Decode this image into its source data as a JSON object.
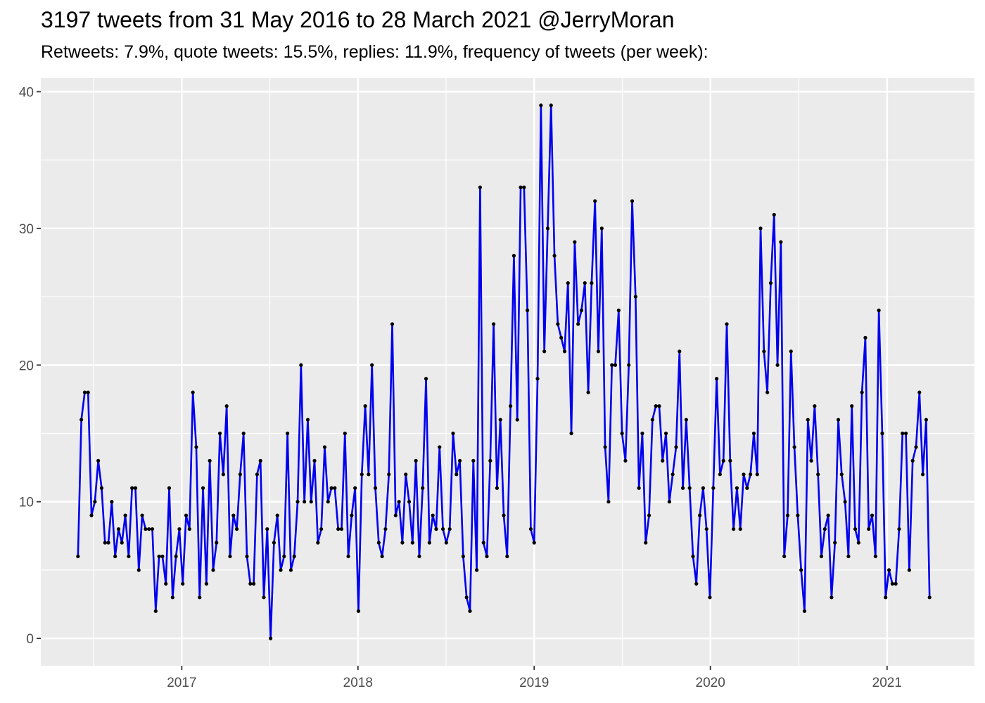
{
  "header": {
    "title": "3197 tweets from 31 May 2016 to 28 March 2021 @JerryMoran",
    "subtitle": "Retweets: 7.9%, quote tweets: 15.5%, replies: 11.9%, frequency of tweets (per week):"
  },
  "colors": {
    "panel": "#ebebeb",
    "grid": "#ffffff",
    "line": "#0000ee",
    "point": "#000000",
    "tick_text": "#4d4d4d"
  },
  "chart_data": {
    "type": "line",
    "title": "3197 tweets from 31 May 2016 to 28 March 2021 @JerryMoran",
    "subtitle": "Retweets: 7.9%, quote tweets: 15.5%, replies: 11.9%, frequency of tweets (per week):",
    "xlabel": "",
    "ylabel": "",
    "x_type": "date",
    "x_start": "2016-05-31",
    "x_step_days": 7,
    "xlim": [
      "2016-03-15",
      "2021-07-01"
    ],
    "ylim": [
      -2,
      41
    ],
    "x_ticks": [
      {
        "label": "2017",
        "date": "2017-01-01"
      },
      {
        "label": "2018",
        "date": "2018-01-01"
      },
      {
        "label": "2019",
        "date": "2019-01-01"
      },
      {
        "label": "2020",
        "date": "2020-01-01"
      },
      {
        "label": "2021",
        "date": "2021-01-01"
      }
    ],
    "y_ticks": [
      0,
      10,
      20,
      30,
      40
    ],
    "grid": true,
    "legend": "none",
    "values": [
      6,
      16,
      18,
      18,
      9,
      10,
      13,
      11,
      7,
      7,
      10,
      6,
      8,
      7,
      9,
      6,
      11,
      11,
      5,
      9,
      8,
      8,
      8,
      2,
      6,
      6,
      4,
      11,
      3,
      6,
      8,
      4,
      9,
      8,
      18,
      14,
      3,
      11,
      4,
      13,
      5,
      7,
      15,
      12,
      17,
      6,
      9,
      8,
      12,
      15,
      6,
      4,
      4,
      12,
      13,
      3,
      8,
      0,
      7,
      9,
      5,
      6,
      15,
      5,
      6,
      10,
      20,
      10,
      16,
      10,
      13,
      7,
      8,
      14,
      10,
      11,
      11,
      8,
      8,
      15,
      6,
      9,
      11,
      2,
      12,
      17,
      12,
      20,
      11,
      7,
      6,
      8,
      12,
      23,
      9,
      10,
      7,
      12,
      10,
      7,
      13,
      6,
      11,
      19,
      7,
      9,
      8,
      14,
      8,
      7,
      8,
      15,
      12,
      13,
      6,
      3,
      2,
      13,
      5,
      33,
      7,
      6,
      13,
      23,
      11,
      16,
      9,
      6,
      17,
      28,
      16,
      33,
      33,
      24,
      8,
      7,
      19,
      39,
      21,
      30,
      39,
      28,
      23,
      22,
      21,
      26,
      15,
      29,
      23,
      24,
      26,
      18,
      26,
      32,
      21,
      30,
      14,
      10,
      20,
      20,
      24,
      15,
      13,
      20,
      32,
      25,
      11,
      15,
      7,
      9,
      16,
      17,
      17,
      13,
      15,
      10,
      12,
      14,
      21,
      11,
      16,
      11,
      6,
      4,
      9,
      11,
      8,
      3,
      11,
      19,
      12,
      13,
      23,
      13,
      8,
      11,
      8,
      12,
      11,
      12,
      15,
      12,
      30,
      21,
      18,
      26,
      31,
      20,
      29,
      6,
      9,
      21,
      14,
      9,
      5,
      2,
      16,
      13,
      17,
      12,
      6,
      8,
      9,
      3,
      7,
      16,
      12,
      10,
      6,
      17,
      8,
      7,
      18,
      22,
      8,
      9,
      6,
      24,
      15,
      3,
      5,
      4,
      4,
      8,
      15,
      15,
      5,
      13,
      14,
      18,
      12,
      16,
      3
    ]
  }
}
